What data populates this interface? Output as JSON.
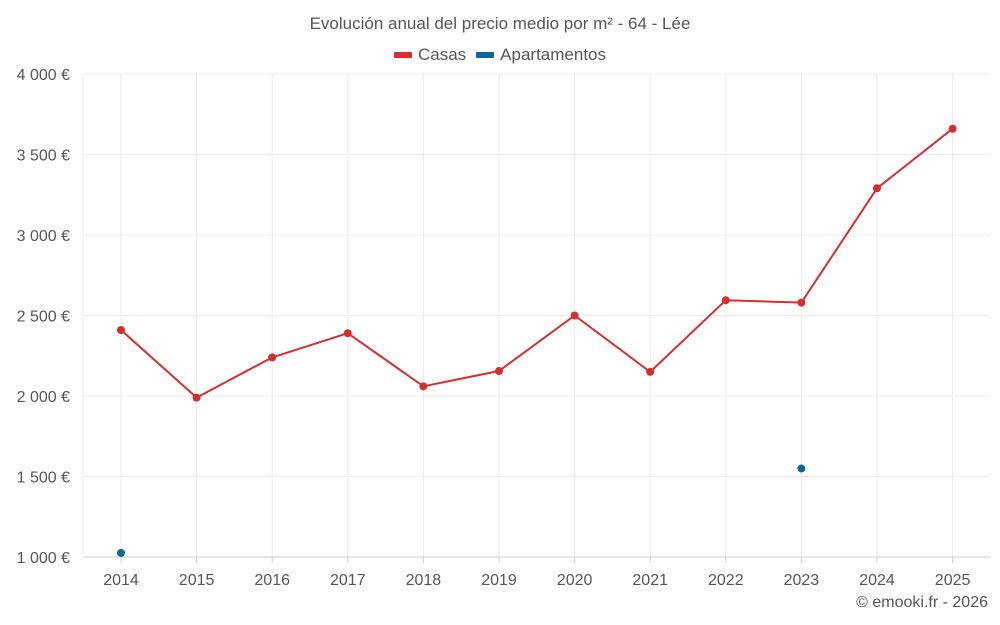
{
  "chart_data": {
    "type": "line",
    "title": "Evolución anual del precio medio por m² - 64 - Lée",
    "categories": [
      "2014",
      "2015",
      "2016",
      "2017",
      "2018",
      "2019",
      "2020",
      "2021",
      "2022",
      "2023",
      "2024",
      "2025"
    ],
    "series": [
      {
        "name": "Casas",
        "color": "#d32f2f",
        "values": [
          2410,
          1990,
          2240,
          2390,
          2060,
          2155,
          2500,
          2150,
          2595,
          2580,
          3290,
          3660
        ]
      },
      {
        "name": "Apartamentos",
        "color": "#0d6699",
        "values": [
          1025,
          null,
          null,
          null,
          null,
          null,
          null,
          null,
          null,
          1550,
          null,
          null
        ]
      }
    ],
    "ylim": [
      1000,
      4000
    ],
    "yticks": [
      1000,
      1500,
      2000,
      2500,
      3000,
      3500,
      4000
    ],
    "ytick_labels": [
      "1 000 €",
      "1 500 €",
      "2 000 €",
      "2 500 €",
      "3 000 €",
      "3 500 €",
      "4 000 €"
    ],
    "xlabel": "",
    "ylabel": "",
    "grid": true,
    "legend_position": "top-center"
  },
  "credit": "© emooki.fr - 2026"
}
